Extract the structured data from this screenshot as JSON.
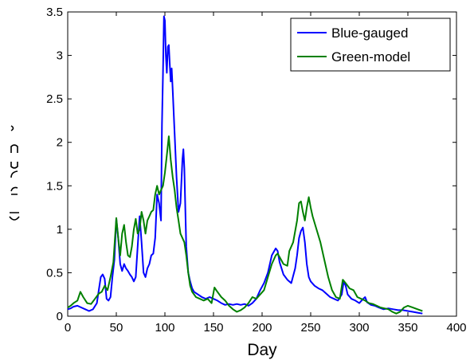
{
  "chart_data": {
    "type": "line",
    "xlabel": "Day",
    "ylabel": "",
    "xlim": [
      0,
      400
    ],
    "ylim": [
      0,
      3.5
    ],
    "xticks": [
      0,
      50,
      100,
      150,
      200,
      250,
      300,
      350,
      400
    ],
    "yticks": [
      0,
      0.5,
      1,
      1.5,
      2,
      2.5,
      3,
      3.5
    ],
    "grid": false,
    "legend_position": "top-right",
    "series": [
      {
        "name": "Blue-gauged",
        "color": "#0000ff",
        "points": [
          [
            0,
            0.08
          ],
          [
            3,
            0.09
          ],
          [
            6,
            0.11
          ],
          [
            10,
            0.12
          ],
          [
            14,
            0.1
          ],
          [
            18,
            0.08
          ],
          [
            22,
            0.06
          ],
          [
            26,
            0.08
          ],
          [
            30,
            0.15
          ],
          [
            32,
            0.3
          ],
          [
            34,
            0.45
          ],
          [
            36,
            0.48
          ],
          [
            38,
            0.43
          ],
          [
            40,
            0.2
          ],
          [
            42,
            0.18
          ],
          [
            44,
            0.22
          ],
          [
            46,
            0.45
          ],
          [
            48,
            0.65
          ],
          [
            50,
            1.12
          ],
          [
            52,
            0.9
          ],
          [
            54,
            0.6
          ],
          [
            56,
            0.52
          ],
          [
            58,
            0.6
          ],
          [
            60,
            0.55
          ],
          [
            62,
            0.52
          ],
          [
            64,
            0.48
          ],
          [
            66,
            0.45
          ],
          [
            68,
            0.4
          ],
          [
            70,
            0.45
          ],
          [
            72,
            0.8
          ],
          [
            74,
            1.15
          ],
          [
            76,
            0.85
          ],
          [
            78,
            0.5
          ],
          [
            80,
            0.45
          ],
          [
            82,
            0.55
          ],
          [
            84,
            0.6
          ],
          [
            86,
            0.7
          ],
          [
            88,
            0.72
          ],
          [
            90,
            0.9
          ],
          [
            92,
            1.4
          ],
          [
            94,
            1.3
          ],
          [
            96,
            1.1
          ],
          [
            97,
            2.2
          ],
          [
            98,
            2.8
          ],
          [
            99,
            3.45
          ],
          [
            100,
            3.4
          ],
          [
            101,
            3.0
          ],
          [
            102,
            2.8
          ],
          [
            103,
            3.1
          ],
          [
            104,
            3.12
          ],
          [
            105,
            2.9
          ],
          [
            106,
            2.7
          ],
          [
            107,
            2.85
          ],
          [
            108,
            2.6
          ],
          [
            110,
            2.1
          ],
          [
            112,
            1.6
          ],
          [
            114,
            1.2
          ],
          [
            116,
            1.3
          ],
          [
            118,
            1.8
          ],
          [
            119,
            1.92
          ],
          [
            120,
            1.7
          ],
          [
            122,
            0.8
          ],
          [
            124,
            0.5
          ],
          [
            126,
            0.4
          ],
          [
            128,
            0.32
          ],
          [
            130,
            0.28
          ],
          [
            134,
            0.25
          ],
          [
            138,
            0.22
          ],
          [
            142,
            0.2
          ],
          [
            146,
            0.22
          ],
          [
            150,
            0.2
          ],
          [
            154,
            0.18
          ],
          [
            158,
            0.15
          ],
          [
            162,
            0.13
          ],
          [
            166,
            0.14
          ],
          [
            170,
            0.13
          ],
          [
            174,
            0.14
          ],
          [
            178,
            0.13
          ],
          [
            182,
            0.14
          ],
          [
            186,
            0.12
          ],
          [
            190,
            0.15
          ],
          [
            194,
            0.2
          ],
          [
            198,
            0.3
          ],
          [
            202,
            0.38
          ],
          [
            206,
            0.5
          ],
          [
            210,
            0.7
          ],
          [
            214,
            0.78
          ],
          [
            216,
            0.75
          ],
          [
            218,
            0.62
          ],
          [
            222,
            0.48
          ],
          [
            226,
            0.42
          ],
          [
            230,
            0.38
          ],
          [
            234,
            0.55
          ],
          [
            236,
            0.7
          ],
          [
            238,
            0.9
          ],
          [
            240,
            0.98
          ],
          [
            242,
            1.02
          ],
          [
            244,
            0.85
          ],
          [
            246,
            0.6
          ],
          [
            248,
            0.45
          ],
          [
            250,
            0.4
          ],
          [
            254,
            0.35
          ],
          [
            258,
            0.32
          ],
          [
            262,
            0.3
          ],
          [
            266,
            0.26
          ],
          [
            270,
            0.22
          ],
          [
            274,
            0.2
          ],
          [
            278,
            0.18
          ],
          [
            282,
            0.25
          ],
          [
            284,
            0.4
          ],
          [
            286,
            0.35
          ],
          [
            288,
            0.25
          ],
          [
            292,
            0.2
          ],
          [
            296,
            0.18
          ],
          [
            300,
            0.15
          ],
          [
            304,
            0.2
          ],
          [
            306,
            0.22
          ],
          [
            308,
            0.16
          ],
          [
            312,
            0.13
          ],
          [
            316,
            0.12
          ],
          [
            320,
            0.1
          ],
          [
            325,
            0.08
          ],
          [
            330,
            0.09
          ],
          [
            335,
            0.08
          ],
          [
            340,
            0.07
          ],
          [
            345,
            0.07
          ],
          [
            350,
            0.06
          ],
          [
            355,
            0.05
          ],
          [
            360,
            0.04
          ],
          [
            365,
            0.03
          ]
        ]
      },
      {
        "name": "Green-model",
        "color": "#008000",
        "points": [
          [
            0,
            0.1
          ],
          [
            3,
            0.12
          ],
          [
            6,
            0.15
          ],
          [
            10,
            0.18
          ],
          [
            13,
            0.28
          ],
          [
            16,
            0.22
          ],
          [
            20,
            0.15
          ],
          [
            24,
            0.14
          ],
          [
            28,
            0.2
          ],
          [
            32,
            0.26
          ],
          [
            35,
            0.28
          ],
          [
            38,
            0.35
          ],
          [
            41,
            0.3
          ],
          [
            44,
            0.45
          ],
          [
            47,
            0.62
          ],
          [
            50,
            1.13
          ],
          [
            52,
            0.9
          ],
          [
            54,
            0.7
          ],
          [
            56,
            0.95
          ],
          [
            58,
            1.05
          ],
          [
            60,
            0.85
          ],
          [
            62,
            0.7
          ],
          [
            64,
            0.68
          ],
          [
            66,
            0.8
          ],
          [
            68,
            1.0
          ],
          [
            70,
            1.12
          ],
          [
            72,
            0.95
          ],
          [
            74,
            1.0
          ],
          [
            76,
            1.2
          ],
          [
            78,
            1.1
          ],
          [
            80,
            0.95
          ],
          [
            82,
            1.1
          ],
          [
            84,
            1.15
          ],
          [
            86,
            1.2
          ],
          [
            88,
            1.22
          ],
          [
            90,
            1.4
          ],
          [
            92,
            1.5
          ],
          [
            94,
            1.4
          ],
          [
            96,
            1.45
          ],
          [
            98,
            1.5
          ],
          [
            100,
            1.65
          ],
          [
            102,
            1.85
          ],
          [
            104,
            2.07
          ],
          [
            106,
            1.8
          ],
          [
            108,
            1.6
          ],
          [
            110,
            1.45
          ],
          [
            112,
            1.25
          ],
          [
            114,
            1.1
          ],
          [
            116,
            0.95
          ],
          [
            118,
            0.9
          ],
          [
            120,
            0.85
          ],
          [
            122,
            0.7
          ],
          [
            124,
            0.5
          ],
          [
            126,
            0.35
          ],
          [
            128,
            0.28
          ],
          [
            132,
            0.22
          ],
          [
            136,
            0.2
          ],
          [
            140,
            0.18
          ],
          [
            144,
            0.2
          ],
          [
            148,
            0.15
          ],
          [
            151,
            0.33
          ],
          [
            154,
            0.28
          ],
          [
            158,
            0.22
          ],
          [
            162,
            0.18
          ],
          [
            166,
            0.12
          ],
          [
            170,
            0.08
          ],
          [
            174,
            0.05
          ],
          [
            178,
            0.07
          ],
          [
            182,
            0.1
          ],
          [
            186,
            0.15
          ],
          [
            190,
            0.22
          ],
          [
            194,
            0.2
          ],
          [
            198,
            0.25
          ],
          [
            202,
            0.3
          ],
          [
            206,
            0.45
          ],
          [
            210,
            0.6
          ],
          [
            214,
            0.7
          ],
          [
            216,
            0.72
          ],
          [
            218,
            0.68
          ],
          [
            222,
            0.6
          ],
          [
            226,
            0.58
          ],
          [
            228,
            0.75
          ],
          [
            232,
            0.85
          ],
          [
            236,
            1.1
          ],
          [
            238,
            1.3
          ],
          [
            240,
            1.32
          ],
          [
            242,
            1.2
          ],
          [
            244,
            1.1
          ],
          [
            246,
            1.25
          ],
          [
            248,
            1.37
          ],
          [
            250,
            1.25
          ],
          [
            252,
            1.15
          ],
          [
            256,
            1.0
          ],
          [
            260,
            0.85
          ],
          [
            264,
            0.65
          ],
          [
            268,
            0.45
          ],
          [
            272,
            0.3
          ],
          [
            276,
            0.22
          ],
          [
            280,
            0.2
          ],
          [
            283,
            0.42
          ],
          [
            286,
            0.38
          ],
          [
            290,
            0.32
          ],
          [
            294,
            0.3
          ],
          [
            298,
            0.22
          ],
          [
            302,
            0.2
          ],
          [
            306,
            0.18
          ],
          [
            310,
            0.15
          ],
          [
            314,
            0.14
          ],
          [
            318,
            0.12
          ],
          [
            322,
            0.1
          ],
          [
            326,
            0.09
          ],
          [
            330,
            0.08
          ],
          [
            334,
            0.05
          ],
          [
            338,
            0.03
          ],
          [
            342,
            0.05
          ],
          [
            346,
            0.1
          ],
          [
            350,
            0.12
          ],
          [
            355,
            0.1
          ],
          [
            360,
            0.08
          ],
          [
            365,
            0.06
          ]
        ]
      }
    ]
  }
}
